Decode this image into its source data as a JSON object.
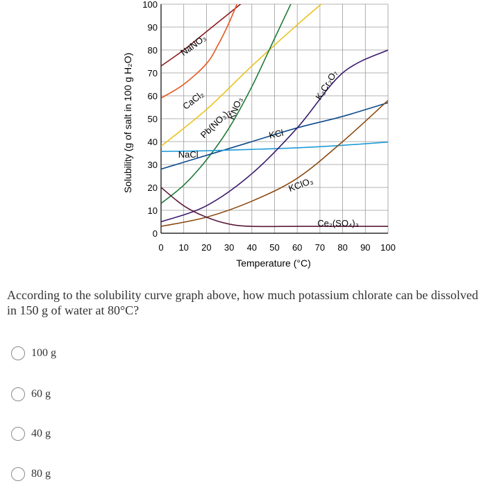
{
  "chart_data": {
    "type": "line",
    "xlabel": "Temperature (°C)",
    "ylabel": "Solubility (g of salt in 100 g H₂O)",
    "xlim": [
      0,
      100
    ],
    "ylim": [
      0,
      100
    ],
    "x_ticks": [
      "0",
      "10",
      "20",
      "30",
      "40",
      "50",
      "60",
      "70",
      "80",
      "90",
      "100"
    ],
    "y_ticks": [
      "0",
      "10",
      "20",
      "30",
      "40",
      "50",
      "60",
      "70",
      "80",
      "90",
      "100"
    ],
    "grid": true,
    "series": [
      {
        "name": "NaNO₃",
        "color": "#8b1a1a",
        "x": [
          0,
          10,
          20,
          30,
          40,
          50
        ],
        "y": [
          73,
          80,
          88,
          96,
          104,
          112
        ]
      },
      {
        "name": "CaCl₂",
        "color": "#e5561d",
        "x": [
          0,
          10,
          20,
          25,
          30,
          35,
          40
        ],
        "y": [
          59,
          65,
          74,
          82,
          92,
          104,
          118
        ]
      },
      {
        "name": "Pb(NO₃)₂",
        "color": "#e8c21a",
        "x": [
          0,
          20,
          40,
          60,
          80
        ],
        "y": [
          38,
          54,
          73,
          91,
          108
        ]
      },
      {
        "name": "KNO₃",
        "color": "#1f7a35",
        "x": [
          0,
          10,
          20,
          30,
          40,
          50,
          60
        ],
        "y": [
          13,
          21,
          32,
          46,
          64,
          85,
          106
        ]
      },
      {
        "name": "KCl",
        "color": "#0d4a8c",
        "x": [
          0,
          20,
          40,
          60,
          80,
          100
        ],
        "y": [
          28,
          34,
          40,
          46,
          51,
          57
        ]
      },
      {
        "name": "NaCl",
        "color": "#1e9bd7",
        "x": [
          0,
          20,
          40,
          60,
          80,
          100
        ],
        "y": [
          35.7,
          36,
          36.6,
          37.3,
          38.4,
          39.8
        ]
      },
      {
        "name": "K₂Cr₂O₇",
        "color": "#3a1a6b",
        "x": [
          0,
          20,
          40,
          60,
          80,
          100
        ],
        "y": [
          5,
          12,
          26,
          46,
          70,
          80
        ]
      },
      {
        "name": "KClO₃",
        "color": "#8a4a10",
        "x": [
          0,
          20,
          40,
          60,
          80,
          100
        ],
        "y": [
          3,
          7,
          14,
          24,
          40,
          58
        ]
      },
      {
        "name": "Ce₂(SO₄)₃",
        "color": "#5a1a3a",
        "x": [
          0,
          10,
          20,
          30,
          40,
          60,
          80,
          100
        ],
        "y": [
          20,
          12,
          7,
          4,
          3,
          3,
          3,
          3
        ]
      }
    ]
  },
  "question": {
    "text": "According to the solubility curve graph above, how much potassium chlorate can be dissolved in 150 g of water at 80°C?"
  },
  "options": [
    {
      "label": "100 g"
    },
    {
      "label": "60 g"
    },
    {
      "label": "40 g"
    },
    {
      "label": "80 g"
    }
  ]
}
